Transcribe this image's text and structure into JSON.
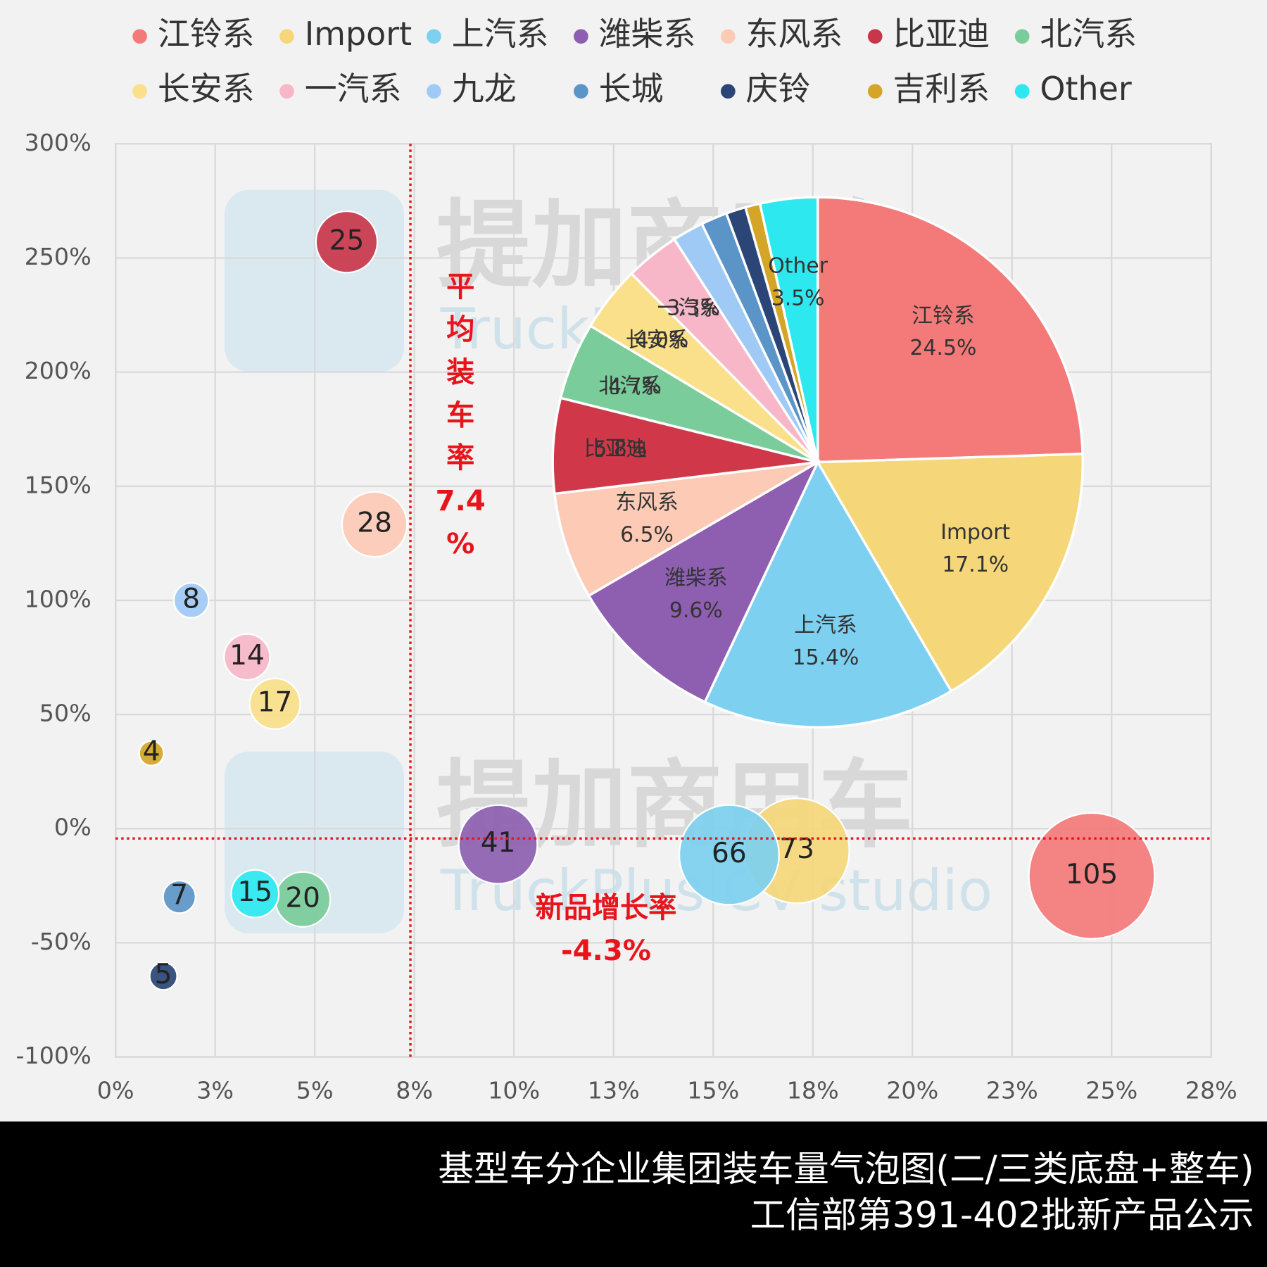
{
  "chart_data": [
    {
      "type": "bubble",
      "xlim": [
        0,
        27.5
      ],
      "xticks": [
        {
          "value": 0,
          "label": "0%"
        },
        {
          "value": 2.5,
          "label": "3%"
        },
        {
          "value": 5,
          "label": "5%"
        },
        {
          "value": 7.5,
          "label": "8%"
        },
        {
          "value": 10,
          "label": "10%"
        },
        {
          "value": 12.5,
          "label": "13%"
        },
        {
          "value": 15,
          "label": "15%"
        },
        {
          "value": 17.5,
          "label": "18%"
        },
        {
          "value": 20,
          "label": "20%"
        },
        {
          "value": 22.5,
          "label": "23%"
        },
        {
          "value": 25,
          "label": "25%"
        },
        {
          "value": 27.5,
          "label": "28%"
        }
      ],
      "ylim": [
        -100,
        300
      ],
      "yticks": [
        {
          "value": -100,
          "label": "-100%"
        },
        {
          "value": -50,
          "label": "-50%"
        },
        {
          "value": 0,
          "label": "0%"
        },
        {
          "value": 50,
          "label": "50%"
        },
        {
          "value": 100,
          "label": "100%"
        },
        {
          "value": 150,
          "label": "150%"
        },
        {
          "value": 200,
          "label": "200%"
        },
        {
          "value": 250,
          "label": "250%"
        },
        {
          "value": 300,
          "label": "300%"
        }
      ],
      "grid": true,
      "legend": "top",
      "series": [
        {
          "name": "江铃系",
          "color": "#f47a7a",
          "x": [
            24.5
          ],
          "values": [
            -20.7
          ],
          "sizes": [
            105
          ]
        },
        {
          "name": "Import",
          "color": "#f5d77a",
          "x": [
            17.1
          ],
          "values": [
            -9.7
          ],
          "sizes": [
            73
          ]
        },
        {
          "name": "上汽系",
          "color": "#7dd0f0",
          "x": [
            15.4
          ],
          "values": [
            -11.5
          ],
          "sizes": [
            66
          ]
        },
        {
          "name": "潍柴系",
          "color": "#8e5fb0",
          "x": [
            9.6
          ],
          "values": [
            -6.9
          ],
          "sizes": [
            41
          ]
        },
        {
          "name": "东风系",
          "color": "#fccab5",
          "x": [
            6.5
          ],
          "values": [
            133.3
          ],
          "sizes": [
            28
          ]
        },
        {
          "name": "比亚迪",
          "color": "#c8364a",
          "x": [
            5.8
          ],
          "values": [
            257
          ],
          "sizes": [
            25
          ]
        },
        {
          "name": "北汽系",
          "color": "#7acc9a",
          "x": [
            4.7
          ],
          "values": [
            -31
          ],
          "sizes": [
            20
          ]
        },
        {
          "name": "长安系",
          "color": "#fae08a",
          "x": [
            4.0
          ],
          "values": [
            54.7
          ],
          "sizes": [
            17
          ]
        },
        {
          "name": "一汽系",
          "color": "#f7b7c8",
          "x": [
            3.3
          ],
          "values": [
            75.2
          ],
          "sizes": [
            14
          ]
        },
        {
          "name": "九龙",
          "color": "#9fcaf5",
          "x": [
            1.9
          ],
          "values": [
            100
          ],
          "sizes": [
            8
          ]
        },
        {
          "name": "长城",
          "color": "#5b95c8",
          "x": [
            1.6
          ],
          "values": [
            -29.9
          ],
          "sizes": [
            7
          ]
        },
        {
          "name": "庆铃",
          "color": "#2b4577",
          "x": [
            1.2
          ],
          "values": [
            -64.6
          ],
          "sizes": [
            5
          ]
        },
        {
          "name": "吉利系",
          "color": "#d4a526",
          "x": [
            0.9
          ],
          "values": [
            33
          ],
          "sizes": [
            4
          ]
        },
        {
          "name": "Other",
          "color": "#2ee8f0",
          "x": [
            3.5
          ],
          "values": [
            -28.5
          ],
          "sizes": [
            15
          ]
        }
      ],
      "reference_lines": [
        {
          "axis": "x",
          "value": 7.4,
          "label": "平均装车率",
          "value_label": "7.4%",
          "color": "#e8141c"
        },
        {
          "axis": "y",
          "value": -4.3,
          "label": "新品增长率",
          "value_label": "-4.3%",
          "color": "#e8141c"
        }
      ]
    },
    {
      "type": "pie",
      "categories": [
        "江铃系",
        "Import",
        "上汽系",
        "潍柴系",
        "东风系",
        "比亚迪",
        "北汽系",
        "长安系",
        "一汽系",
        null,
        null,
        null,
        null,
        "Other"
      ],
      "values": [
        24.5,
        17.1,
        15.4,
        9.6,
        6.5,
        5.8,
        4.7,
        4.0,
        3.3,
        1.9,
        1.6,
        1.2,
        0.9,
        3.5
      ],
      "value_labels": [
        "24.5%",
        "17.1%",
        "15.4%",
        "9.6%",
        "6.5%",
        "5.8%",
        "4.7%",
        "4.0%",
        "3.3%",
        null,
        null,
        null,
        null,
        "3.5%"
      ],
      "colors": [
        "#f47a7a",
        "#f5d77a",
        "#7dd0f0",
        "#8e5fb0",
        "#fccab5",
        "#d0384a",
        "#7acc9a",
        "#fae08a",
        "#f7b7c8",
        "#9fcaf5",
        "#5b95c8",
        "#2b4577",
        "#d4a526",
        "#2ee8f0"
      ]
    }
  ],
  "watermark": "提加商用车",
  "watermark_en": "TruckPlus CV studio",
  "caption": [
    "基型车分企业集团装车量气泡图(二/三类底盘+整车)",
    "工信部第391-402批新产品公示"
  ]
}
